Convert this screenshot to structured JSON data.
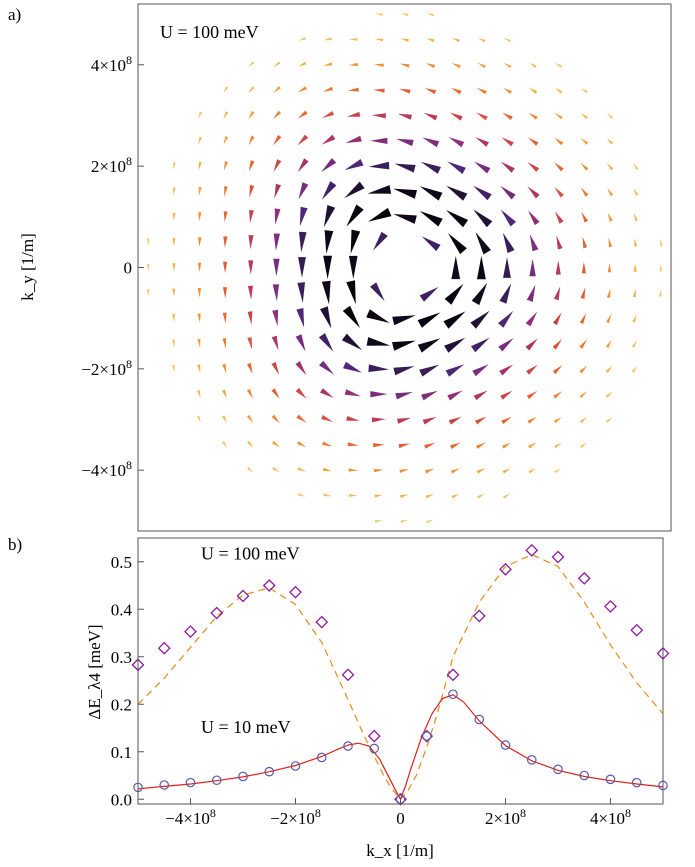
{
  "chart_data": [
    {
      "type": "vector_field",
      "panel_label": "a)",
      "annotation": "U = 100 meV",
      "xlim": [
        -520000000.0,
        520000000.0
      ],
      "ylim": [
        -520000000.0,
        520000000.0
      ],
      "ylabel": "k_y [1/m]",
      "y_ticks": [
        {
          "value": 400000000.0,
          "mant": "4×10",
          "exp": "8"
        },
        {
          "value": 200000000.0,
          "mant": "2×10",
          "exp": "8"
        },
        {
          "value": 0,
          "mant": "0",
          "exp": ""
        },
        {
          "value": -200000000.0,
          "mant": "−2×10",
          "exp": "8"
        },
        {
          "value": -400000000.0,
          "mant": "−4×10",
          "exp": "8"
        }
      ],
      "grid_spacing": 50000000.0,
      "colormap": [
        "#fde7a4",
        "#f7a83a",
        "#e8632f",
        "#c23b52",
        "#8e2e7c",
        "#562a80",
        "#2a1845",
        "#050308"
      ]
    },
    {
      "type": "scatter+line",
      "panel_label": "b)",
      "xlabel": "k_x [1/m]",
      "ylabel": "ΔE_λ4 [meV]",
      "xlim": [
        -500000000.0,
        500000000.0
      ],
      "ylim": [
        -0.01,
        0.55
      ],
      "x_ticks": [
        {
          "value": -400000000.0,
          "mant": "−4×10",
          "exp": "8"
        },
        {
          "value": -200000000.0,
          "mant": "−2×10",
          "exp": "8"
        },
        {
          "value": 0,
          "mant": "0",
          "exp": ""
        },
        {
          "value": 200000000.0,
          "mant": "2×10",
          "exp": "8"
        },
        {
          "value": 400000000.0,
          "mant": "4×10",
          "exp": "8"
        }
      ],
      "y_ticks": [
        0.0,
        0.1,
        0.2,
        0.3,
        0.4,
        0.5
      ],
      "y_tick_labels": [
        "0.0",
        "0.1",
        "0.2",
        "0.3",
        "0.4",
        "0.5"
      ],
      "annotations": [
        {
          "text": "U = 100 meV",
          "x": -380000000.0,
          "y": 0.505
        },
        {
          "text": "U = 10 meV",
          "x": -380000000.0,
          "y": 0.14
        }
      ],
      "series": [
        {
          "marker": "diamond",
          "color": "#8a1c9e",
          "x": [
            -500000000.0,
            -450000000.0,
            -400000000.0,
            -350000000.0,
            -300000000.0,
            -250000000.0,
            -200000000.0,
            -150000000.0,
            -100000000.0,
            -50000000.0,
            0,
            50000000.0,
            100000000.0,
            150000000.0,
            200000000.0,
            250000000.0,
            300000000.0,
            350000000.0,
            400000000.0,
            450000000.0,
            500000000.0
          ],
          "y": [
            0.283,
            0.318,
            0.353,
            0.392,
            0.428,
            0.45,
            0.436,
            0.373,
            0.262,
            0.133,
            0.0,
            0.133,
            0.262,
            0.386,
            0.484,
            0.524,
            0.51,
            0.465,
            0.406,
            0.356,
            0.307
          ]
        },
        {
          "marker": "circle",
          "color": "#5a5aa8",
          "x": [
            -500000000.0,
            -450000000.0,
            -400000000.0,
            -350000000.0,
            -300000000.0,
            -250000000.0,
            -200000000.0,
            -150000000.0,
            -100000000.0,
            -50000000.0,
            0,
            50000000.0,
            100000000.0,
            150000000.0,
            200000000.0,
            250000000.0,
            300000000.0,
            350000000.0,
            400000000.0,
            450000000.0,
            500000000.0
          ],
          "y": [
            0.025,
            0.03,
            0.035,
            0.04,
            0.048,
            0.058,
            0.07,
            0.088,
            0.112,
            0.107,
            0.0,
            0.133,
            0.221,
            0.168,
            0.114,
            0.083,
            0.063,
            0.05,
            0.042,
            0.035,
            0.029
          ]
        },
        {
          "line": "dashed",
          "color": "#e88a1a",
          "x": [
            -500000000.0,
            -450000000.0,
            -400000000.0,
            -350000000.0,
            -300000000.0,
            -250000000.0,
            -200000000.0,
            -150000000.0,
            -100000000.0,
            -70000000.0,
            -50000000.0,
            -30000000.0,
            -15000000.0,
            0,
            15000000.0,
            30000000.0,
            50000000.0,
            70000000.0,
            100000000.0,
            150000000.0,
            200000000.0,
            250000000.0,
            300000000.0,
            350000000.0,
            400000000.0,
            450000000.0,
            500000000.0
          ],
          "y": [
            0.2,
            0.255,
            0.32,
            0.385,
            0.43,
            0.445,
            0.41,
            0.33,
            0.21,
            0.135,
            0.09,
            0.045,
            0.02,
            0.0,
            0.02,
            0.05,
            0.11,
            0.18,
            0.3,
            0.415,
            0.49,
            0.515,
            0.49,
            0.415,
            0.325,
            0.245,
            0.18
          ]
        },
        {
          "line": "solid",
          "color": "#e0201c",
          "x": [
            -500000000.0,
            -450000000.0,
            -400000000.0,
            -350000000.0,
            -300000000.0,
            -250000000.0,
            -200000000.0,
            -150000000.0,
            -120000000.0,
            -100000000.0,
            -80000000.0,
            -60000000.0,
            -40000000.0,
            -20000000.0,
            -10000000.0,
            0,
            10000000.0,
            20000000.0,
            40000000.0,
            60000000.0,
            80000000.0,
            100000000.0,
            120000000.0,
            150000000.0,
            200000000.0,
            250000000.0,
            300000000.0,
            350000000.0,
            400000000.0,
            450000000.0,
            500000000.0
          ],
          "y": [
            0.022,
            0.027,
            0.032,
            0.039,
            0.047,
            0.058,
            0.071,
            0.09,
            0.105,
            0.114,
            0.118,
            0.112,
            0.085,
            0.042,
            0.02,
            0.0,
            0.03,
            0.065,
            0.13,
            0.18,
            0.212,
            0.22,
            0.205,
            0.165,
            0.113,
            0.081,
            0.061,
            0.048,
            0.039,
            0.032,
            0.026
          ]
        }
      ]
    }
  ]
}
